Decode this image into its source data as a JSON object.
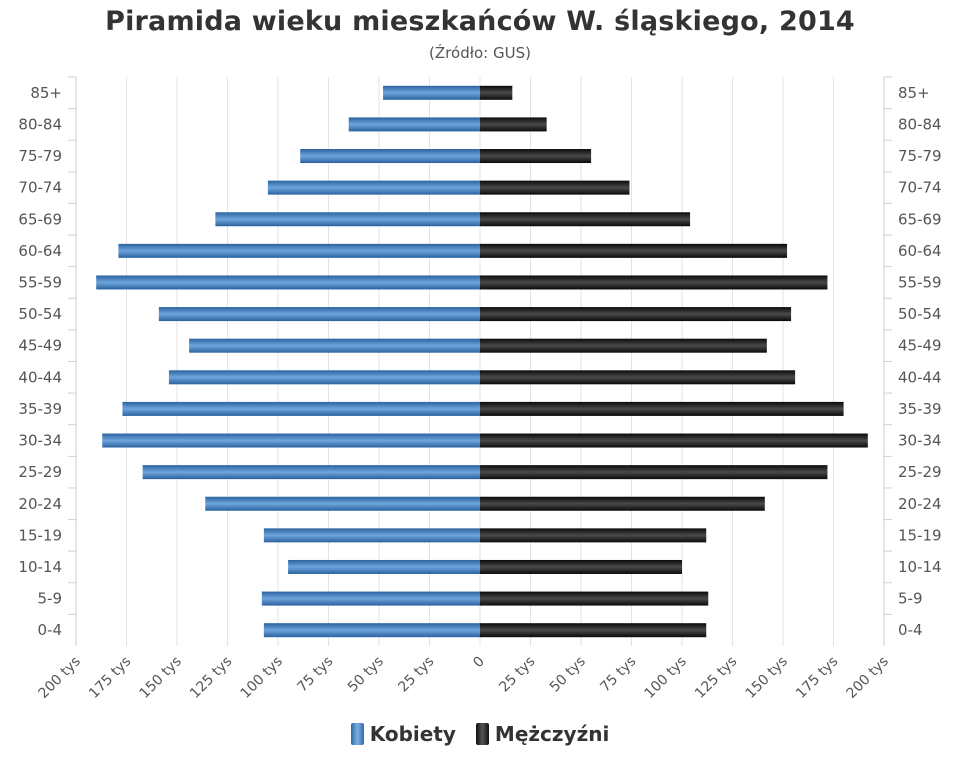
{
  "chart_data": {
    "type": "bar",
    "orientation": "horizontal-population-pyramid",
    "title": "Piramida wieku mieszkańców W. śląskiego, 2014",
    "subtitle": "(Źródło: GUS)",
    "categories": [
      "85+",
      "80-84",
      "75-79",
      "70-74",
      "65-69",
      "60-64",
      "55-59",
      "50-54",
      "45-49",
      "40-44",
      "35-39",
      "30-34",
      "25-29",
      "20-24",
      "15-19",
      "10-14",
      "5-9",
      "0-4"
    ],
    "series": [
      {
        "name": "Kobiety",
        "values": [
          48,
          65,
          89,
          105,
          131,
          179,
          190,
          159,
          144,
          154,
          177,
          187,
          167,
          136,
          107,
          95,
          108,
          107
        ],
        "color": "#3a78b8"
      },
      {
        "name": "Mężczyźni",
        "values": [
          16,
          33,
          55,
          74,
          104,
          152,
          172,
          154,
          142,
          156,
          180,
          192,
          172,
          141,
          112,
          100,
          113,
          112
        ],
        "color": "#1a1a1a"
      }
    ],
    "xlim": [
      -200,
      200
    ],
    "x_tick_values": [
      -200,
      -175,
      -150,
      -125,
      -100,
      -75,
      -50,
      -25,
      0,
      25,
      50,
      75,
      100,
      125,
      150,
      175,
      200
    ],
    "x_tick_labels": [
      "200 tys",
      "175 tys",
      "150 tys",
      "125 tys",
      "100 tys",
      "75 tys",
      "50 tys",
      "25 tys",
      "0",
      "25 tys",
      "50 tys",
      "75 tys",
      "100 tys",
      "125 tys",
      "150 tys",
      "175 tys",
      "200 tys"
    ],
    "grid": true,
    "legend_position": "bottom-center"
  }
}
